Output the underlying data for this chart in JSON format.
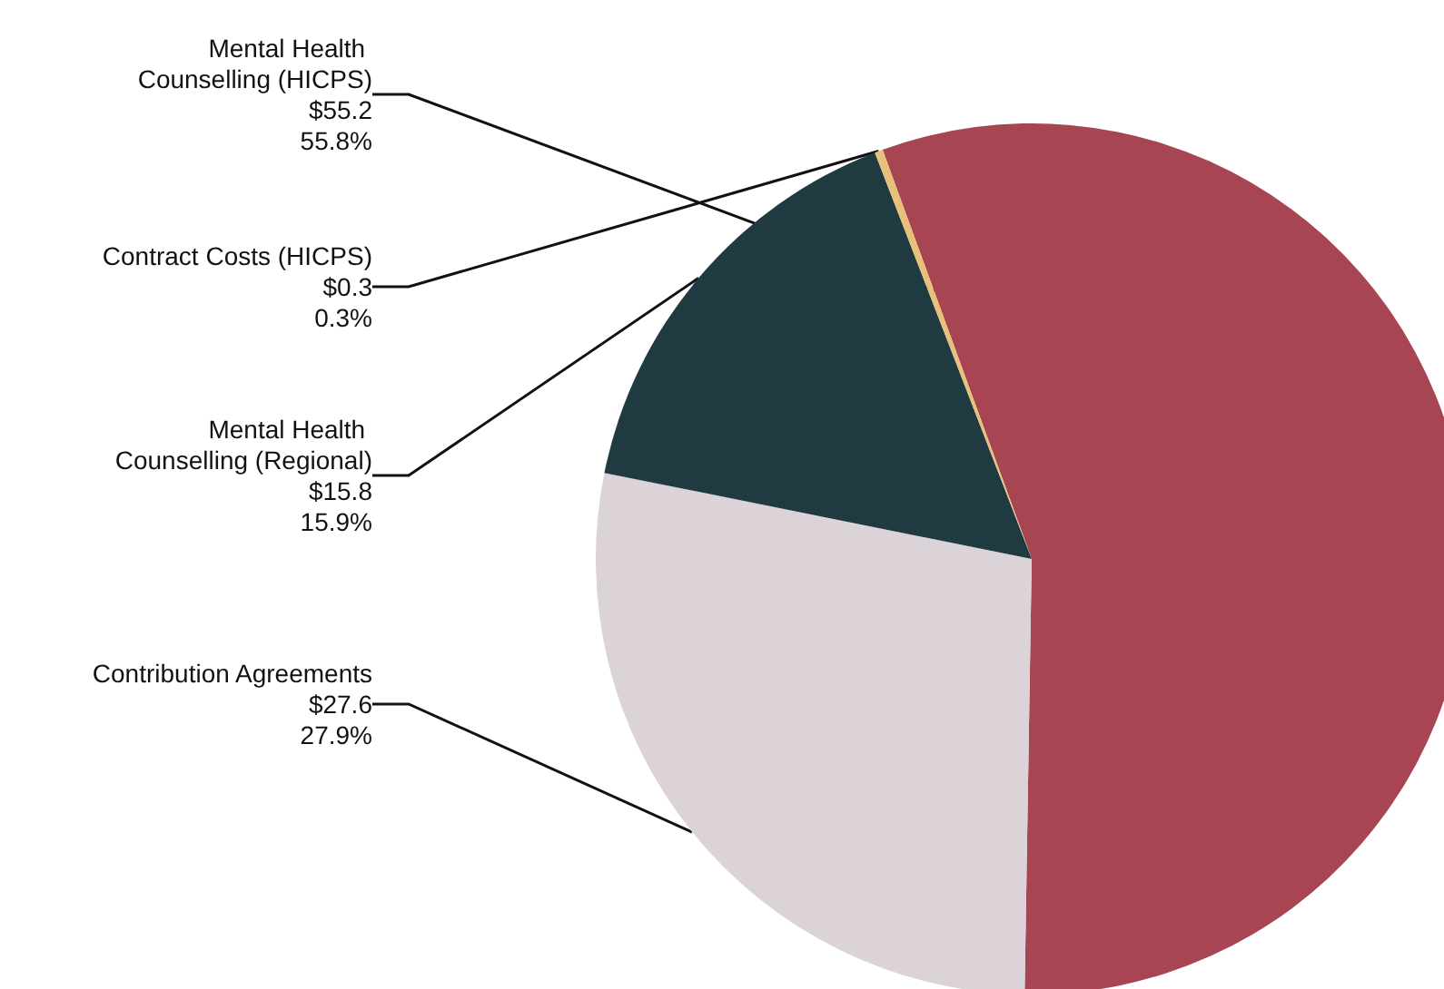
{
  "chart_data": {
    "type": "pie",
    "categories": [
      "Mental Health Counselling (HICPS)",
      "Contribution Agreements",
      "Mental Health Counselling (Regional)",
      "Contract Costs (HICPS)"
    ],
    "values": [
      55.2,
      27.6,
      15.8,
      0.3
    ],
    "value_labels": [
      "$55.2\n55.8%",
      "$27.6\n27.9%",
      "$15.8\n15.9%",
      "$0.3\n0.3%"
    ],
    "colors": [
      "#a84553",
      "#dbd3d7",
      "#1f3a40",
      "#e8c07a"
    ],
    "legend": false
  }
}
